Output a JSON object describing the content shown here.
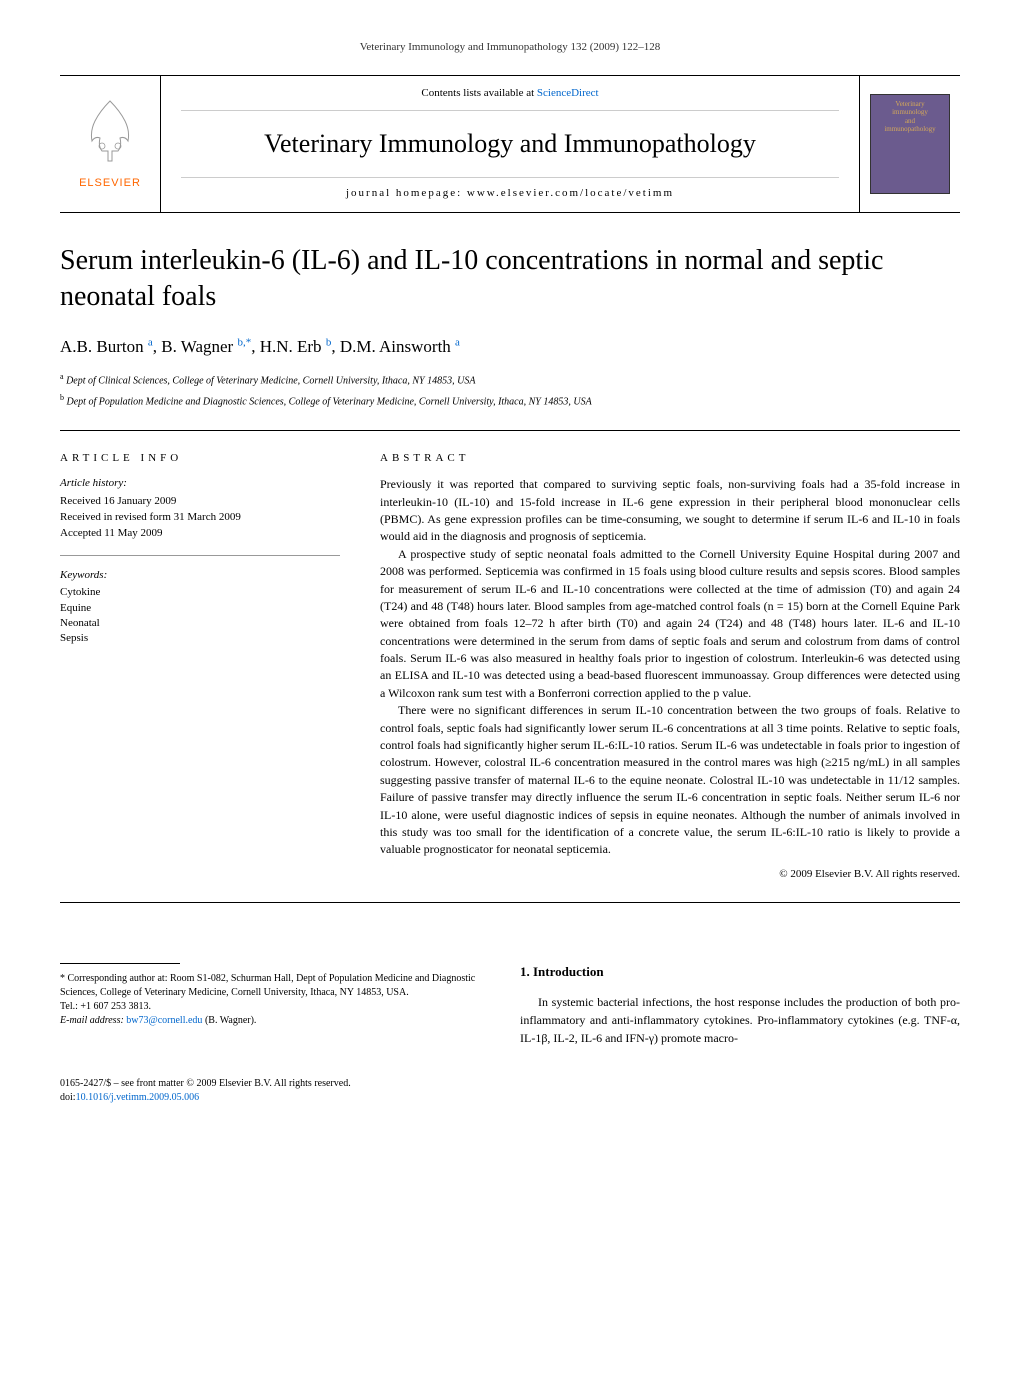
{
  "running_header": "Veterinary Immunology and Immunopathology 132 (2009) 122–128",
  "masthead": {
    "elsevier_label": "ELSEVIER",
    "contents_prefix": "Contents lists available at ",
    "contents_link": "ScienceDirect",
    "journal_name": "Veterinary Immunology and Immunopathology",
    "homepage_prefix": "journal homepage: ",
    "homepage_url": "www.elsevier.com/locate/vetimm",
    "cover_line1": "Veterinary",
    "cover_line2": "immunology",
    "cover_line3": "and",
    "cover_line4": "immunopathology"
  },
  "title": "Serum interleukin-6 (IL-6) and IL-10 concentrations in normal and septic neonatal foals",
  "authors_html_parts": [
    {
      "name": "A.B. Burton",
      "sup": "a"
    },
    {
      "name": "B. Wagner",
      "sup": "b,*"
    },
    {
      "name": "H.N. Erb",
      "sup": "b"
    },
    {
      "name": "D.M. Ainsworth",
      "sup": "a"
    }
  ],
  "affiliations": [
    {
      "sup": "a",
      "text": "Dept of Clinical Sciences, College of Veterinary Medicine, Cornell University, Ithaca, NY 14853, USA"
    },
    {
      "sup": "b",
      "text": "Dept of Population Medicine and Diagnostic Sciences, College of Veterinary Medicine, Cornell University, Ithaca, NY 14853, USA"
    }
  ],
  "article_info": {
    "heading": "ARTICLE INFO",
    "history_label": "Article history:",
    "history": [
      "Received 16 January 2009",
      "Received in revised form 31 March 2009",
      "Accepted 11 May 2009"
    ],
    "keywords_label": "Keywords:",
    "keywords": [
      "Cytokine",
      "Equine",
      "Neonatal",
      "Sepsis"
    ]
  },
  "abstract": {
    "heading": "ABSTRACT",
    "paragraphs": [
      "Previously it was reported that compared to surviving septic foals, non-surviving foals had a 35-fold increase in interleukin-10 (IL-10) and 15-fold increase in IL-6 gene expression in their peripheral blood mononuclear cells (PBMC). As gene expression profiles can be time-consuming, we sought to determine if serum IL-6 and IL-10 in foals would aid in the diagnosis and prognosis of septicemia.",
      "A prospective study of septic neonatal foals admitted to the Cornell University Equine Hospital during 2007 and 2008 was performed. Septicemia was confirmed in 15 foals using blood culture results and sepsis scores. Blood samples for measurement of serum IL-6 and IL-10 concentrations were collected at the time of admission (T0) and again 24 (T24) and 48 (T48) hours later. Blood samples from age-matched control foals (n = 15) born at the Cornell Equine Park were obtained from foals 12–72 h after birth (T0) and again 24 (T24) and 48 (T48) hours later. IL-6 and IL-10 concentrations were determined in the serum from dams of septic foals and serum and colostrum from dams of control foals. Serum IL-6 was also measured in healthy foals prior to ingestion of colostrum. Interleukin-6 was detected using an ELISA and IL-10 was detected using a bead-based fluorescent immunoassay. Group differences were detected using a Wilcoxon rank sum test with a Bonferroni correction applied to the p value.",
      "There were no significant differences in serum IL-10 concentration between the two groups of foals. Relative to control foals, septic foals had significantly lower serum IL-6 concentrations at all 3 time points. Relative to septic foals, control foals had significantly higher serum IL-6:IL-10 ratios. Serum IL-6 was undetectable in foals prior to ingestion of colostrum. However, colostral IL-6 concentration measured in the control mares was high (≥215 ng/mL) in all samples suggesting passive transfer of maternal IL-6 to the equine neonate. Colostral IL-10 was undetectable in 11/12 samples. Failure of passive transfer may directly influence the serum IL-6 concentration in septic foals. Neither serum IL-6 nor IL-10 alone, were useful diagnostic indices of sepsis in equine neonates. Although the number of animals involved in this study was too small for the identification of a concrete value, the serum IL-6:IL-10 ratio is likely to provide a valuable prognosticator for neonatal septicemia."
    ],
    "copyright": "© 2009 Elsevier B.V. All rights reserved."
  },
  "introduction": {
    "heading": "1. Introduction",
    "text": "In systemic bacterial infections, the host response includes the production of both pro-inflammatory and anti-inflammatory cytokines. Pro-inflammatory cytokines (e.g. TNF-α, IL-1β, IL-2, IL-6 and IFN-γ) promote macro-"
  },
  "corresponding": {
    "text": "* Corresponding author at: Room S1-082, Schurman Hall, Dept of Population Medicine and Diagnostic Sciences, College of Veterinary Medicine, Cornell University, Ithaca, NY 14853, USA.",
    "tel": "Tel.: +1 607 253 3813.",
    "email_label": "E-mail address: ",
    "email": "bw73@cornell.edu",
    "email_suffix": " (B. Wagner)."
  },
  "footer": {
    "front_matter": "0165-2427/$ – see front matter © 2009 Elsevier B.V. All rights reserved.",
    "doi_prefix": "doi:",
    "doi": "10.1016/j.vetimm.2009.05.006"
  },
  "colors": {
    "link": "#0066cc",
    "elsevier_orange": "#ff6600",
    "cover_bg": "#6b5b8e",
    "cover_text": "#d4a85a"
  }
}
